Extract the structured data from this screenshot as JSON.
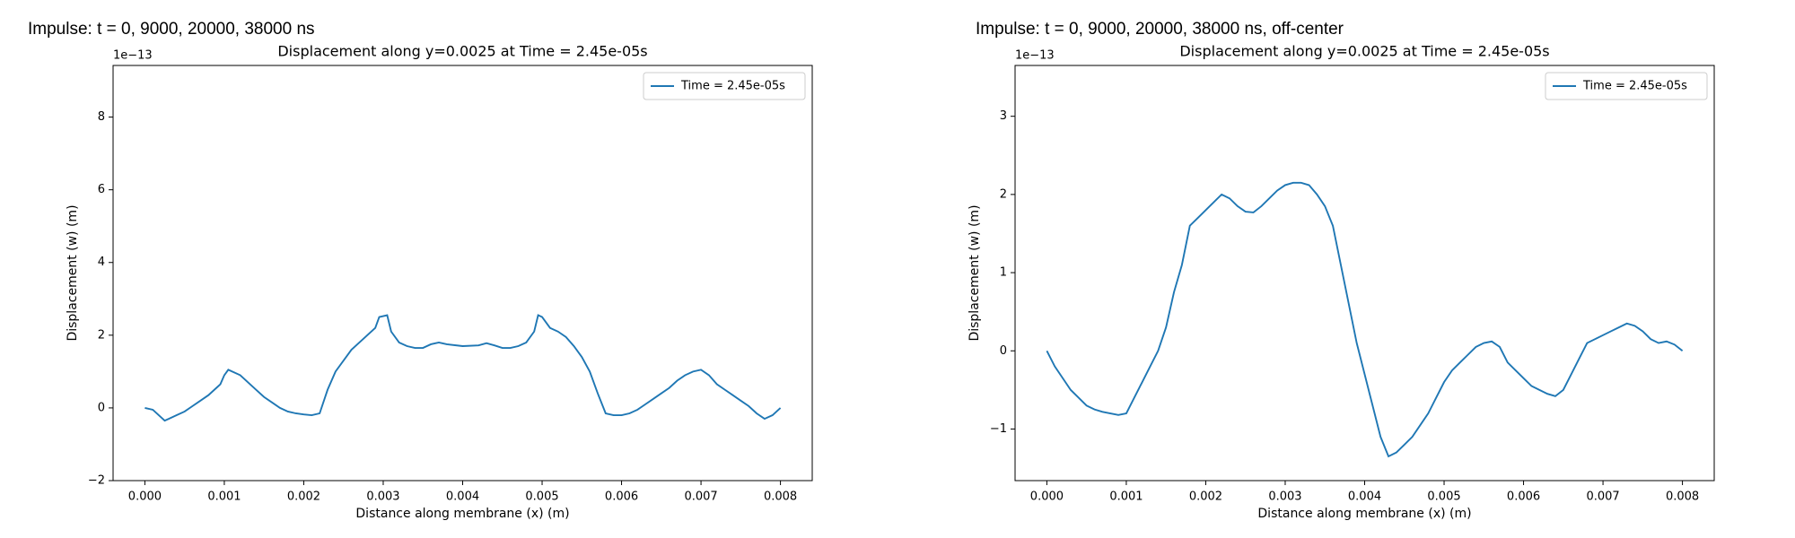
{
  "chart_data": [
    {
      "type": "line",
      "heading": "Impulse: t = 0, 9000, 20000, 38000 ns",
      "title": "Displacement along y=0.0025 at Time = 2.45e-05s",
      "xlabel": "Distance along membrane (x) (m)",
      "ylabel": "Displacement (w) (m)",
      "offset_text": "1e−13",
      "legend": "upper right",
      "x": [
        0,
        0.0001,
        0.0002,
        0.00025,
        0.0003,
        0.0004,
        0.0005,
        0.0006,
        0.0007,
        0.0008,
        0.0009,
        0.00095,
        0.001,
        0.00105,
        0.0011,
        0.0012,
        0.0013,
        0.0014,
        0.0015,
        0.0016,
        0.0017,
        0.0018,
        0.0019,
        0.002,
        0.0021,
        0.0022,
        0.0023,
        0.0024,
        0.0025,
        0.0026,
        0.0027,
        0.0028,
        0.0029,
        0.00295,
        0.00305,
        0.0031,
        0.0032,
        0.0033,
        0.0034,
        0.0035,
        0.0036,
        0.0037,
        0.0038,
        0.004,
        0.0042,
        0.0043,
        0.0044,
        0.0045,
        0.0046,
        0.0047,
        0.0048,
        0.0049,
        0.00495,
        0.005,
        0.0051,
        0.0052,
        0.0053,
        0.0054,
        0.0055,
        0.0056,
        0.0057,
        0.0058,
        0.0059,
        0.006,
        0.0061,
        0.0062,
        0.0063,
        0.0064,
        0.0065,
        0.0066,
        0.0067,
        0.0068,
        0.0069,
        0.007,
        0.0071,
        0.0072,
        0.0073,
        0.0074,
        0.0075,
        0.0076,
        0.0077,
        0.0078,
        0.0079,
        0.008
      ],
      "series": [
        {
          "name": "Time = 2.45e-05s",
          "color": "#1f77b4",
          "values": [
            0,
            -0.05,
            -0.25,
            -0.35,
            -0.3,
            -0.2,
            -0.1,
            0.05,
            0.2,
            0.35,
            0.55,
            0.65,
            0.9,
            1.05,
            1.0,
            0.9,
            0.7,
            0.5,
            0.3,
            0.15,
            0,
            -0.1,
            -0.15,
            -0.18,
            -0.2,
            -0.15,
            0.5,
            1.0,
            1.3,
            1.6,
            1.8,
            2.0,
            2.2,
            2.5,
            2.55,
            2.1,
            1.8,
            1.7,
            1.65,
            1.65,
            1.75,
            1.8,
            1.75,
            1.7,
            1.72,
            1.78,
            1.72,
            1.65,
            1.65,
            1.7,
            1.8,
            2.1,
            2.55,
            2.5,
            2.2,
            2.1,
            1.95,
            1.7,
            1.4,
            1.0,
            0.4,
            -0.15,
            -0.2,
            -0.2,
            -0.15,
            -0.05,
            0.1,
            0.25,
            0.4,
            0.55,
            0.75,
            0.9,
            1.0,
            1.05,
            0.9,
            0.65,
            0.5,
            0.35,
            0.2,
            0.05,
            -0.15,
            -0.3,
            -0.2,
            0
          ]
        }
      ],
      "xlim": [
        -0.0004,
        0.0084
      ],
      "xticks": [
        {
          "value": 0,
          "label": "0.000"
        },
        0.001,
        0.002,
        0.003,
        0.004,
        0.005,
        0.006,
        0.007,
        0.008
      ],
      "ylim": [
        -2,
        9.42
      ],
      "yticks": [
        {
          "value": -2,
          "label": "−2"
        },
        0,
        2,
        4,
        6,
        8
      ]
    },
    {
      "type": "line",
      "heading": "Impulse: t = 0, 9000, 20000, 38000 ns, off-center",
      "title": "Displacement along y=0.0025 at Time = 2.45e-05s",
      "xlabel": "Distance along membrane (x) (m)",
      "ylabel": "Displacement (w) (m)",
      "offset_text": "1e−13",
      "legend": "upper right",
      "x": [
        0,
        0.0001,
        0.0002,
        0.0003,
        0.0004,
        0.0005,
        0.0006,
        0.0007,
        0.0008,
        0.0009,
        0.001,
        0.0011,
        0.0012,
        0.0013,
        0.0014,
        0.0015,
        0.0016,
        0.0017,
        0.0018,
        0.0019,
        0.002,
        0.0021,
        0.0022,
        0.0023,
        0.0024,
        0.0025,
        0.0026,
        0.0027,
        0.0028,
        0.0029,
        0.003,
        0.0031,
        0.0032,
        0.0033,
        0.0034,
        0.0035,
        0.0036,
        0.0037,
        0.0038,
        0.0039,
        0.004,
        0.0041,
        0.0042,
        0.0043,
        0.0044,
        0.0045,
        0.0046,
        0.0047,
        0.0048,
        0.0049,
        0.005,
        0.0051,
        0.0052,
        0.0053,
        0.0054,
        0.0055,
        0.0056,
        0.0057,
        0.0058,
        0.0059,
        0.006,
        0.0061,
        0.0062,
        0.0063,
        0.0064,
        0.0065,
        0.0066,
        0.0067,
        0.0068,
        0.0069,
        0.007,
        0.0071,
        0.0072,
        0.0073,
        0.0074,
        0.0075,
        0.0076,
        0.0077,
        0.0078,
        0.0079,
        0.008
      ],
      "series": [
        {
          "name": "Time = 2.45e-05s",
          "color": "#1f77b4",
          "values": [
            0,
            -0.2,
            -0.35,
            -0.5,
            -0.6,
            -0.7,
            -0.75,
            -0.78,
            -0.8,
            -0.82,
            -0.8,
            -0.6,
            -0.4,
            -0.2,
            0,
            0.3,
            0.75,
            1.1,
            1.6,
            1.7,
            1.8,
            1.9,
            2.0,
            1.95,
            1.85,
            1.78,
            1.77,
            1.85,
            1.95,
            2.05,
            2.12,
            2.15,
            2.15,
            2.12,
            2.0,
            1.85,
            1.6,
            1.1,
            0.6,
            0.1,
            -0.3,
            -0.7,
            -1.1,
            -1.35,
            -1.3,
            -1.2,
            -1.1,
            -0.95,
            -0.8,
            -0.6,
            -0.4,
            -0.25,
            -0.15,
            -0.05,
            0.05,
            0.1,
            0.12,
            0.05,
            -0.15,
            -0.25,
            -0.35,
            -0.45,
            -0.5,
            -0.55,
            -0.58,
            -0.5,
            -0.3,
            -0.1,
            0.1,
            0.15,
            0.2,
            0.25,
            0.3,
            0.35,
            0.32,
            0.25,
            0.15,
            0.1,
            0.12,
            0.08,
            0
          ]
        }
      ],
      "xlim": [
        -0.0004,
        0.0084
      ],
      "xticks": [
        {
          "value": 0,
          "label": "0.000"
        },
        0.001,
        0.002,
        0.003,
        0.004,
        0.005,
        0.006,
        0.007,
        0.008
      ],
      "ylim": [
        -1.66,
        3.65
      ],
      "yticks": [
        {
          "value": -1,
          "label": "−1"
        },
        0,
        1,
        2,
        3
      ]
    }
  ]
}
